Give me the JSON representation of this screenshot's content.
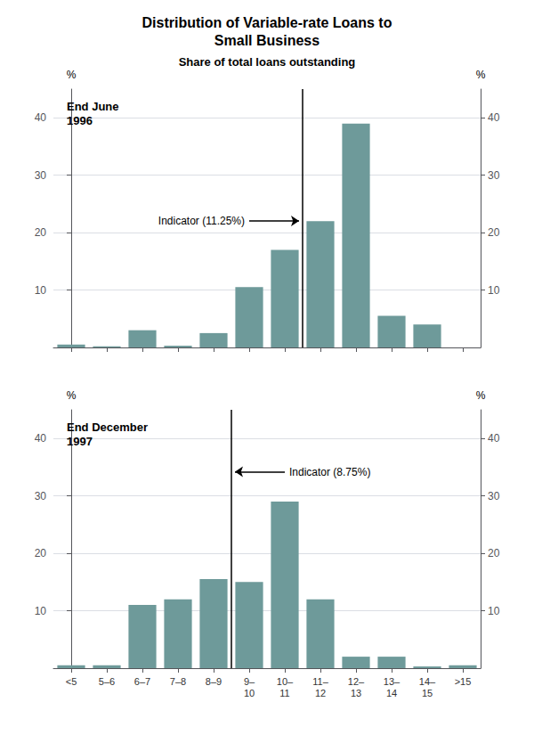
{
  "chart_data": [
    {
      "type": "bar",
      "title": "Distribution of Variable-rate Loans to\nSmall Business",
      "subtitle": "Share of total loans outstanding",
      "label": "End June\n1996",
      "categories": [
        "<5",
        "5–6",
        "6–7",
        "7–8",
        "8–9",
        "9–\n10",
        "10–\n11",
        "11–\n12",
        "12–\n13",
        "13–\n14",
        "14–\n15",
        ">15"
      ],
      "values": [
        0.5,
        0.2,
        3.0,
        0.3,
        2.5,
        10.5,
        17.0,
        22.0,
        39.0,
        5.5,
        4.0,
        0.0
      ],
      "color": "#6e9a9a",
      "ylabel": "%",
      "y2label": "%",
      "ylim": [
        0,
        45
      ],
      "yticks": [
        10,
        20,
        30,
        40
      ],
      "y2lim": [
        0,
        45
      ],
      "y2ticks": [
        10,
        20,
        30,
        40
      ],
      "grid": true,
      "tick_labels": "y",
      "indicator": {
        "x": 6.5,
        "label": "Indicator (11.25%)",
        "color": "#000000"
      }
    },
    {
      "type": "bar",
      "label": "End December\n1997",
      "categories": [
        "<5",
        "5–6",
        "6–7",
        "7–8",
        "8–9",
        "9–\n10",
        "10–\n11",
        "11–\n12",
        "12–\n13",
        "13–\n14",
        "14–\n15",
        ">15"
      ],
      "values": [
        0.5,
        0.5,
        11.0,
        12.0,
        15.5,
        15.0,
        29.0,
        12.0,
        2.0,
        2.0,
        0.3,
        0.5
      ],
      "color": "#6e9a9a",
      "ylabel": "%",
      "y2label": "%",
      "ylim": [
        0,
        45
      ],
      "yticks": [
        10,
        20,
        30,
        40
      ],
      "y2lim": [
        0,
        45
      ],
      "y2ticks": [
        10,
        20,
        30,
        40
      ],
      "grid": true,
      "indicator": {
        "x": 4.5,
        "label": "Indicator (8.75%)",
        "color": "#000000"
      }
    }
  ]
}
